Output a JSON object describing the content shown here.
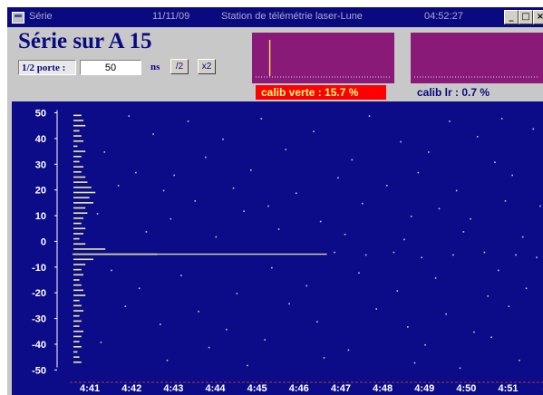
{
  "window": {
    "title": "Série",
    "date": "11/11/09",
    "station": "Station de télémétrie laser-Lune",
    "clock": "04:52:27",
    "minimize_label": "_",
    "maximize_label": "□",
    "close_label": "×"
  },
  "header": {
    "title": "Série sur A 15"
  },
  "controls": {
    "gate_label": "1/2 porte :",
    "gate_value": "50",
    "gate_unit": "ns",
    "half_label": "/2",
    "double_label": "x2"
  },
  "calibration": {
    "green_label": "calib verte : 15.7 %",
    "lr_label": "calib lr : 0.7 %"
  },
  "colors": {
    "plot_bg": "#0c0c88",
    "points": "#c8c8c8",
    "histogram_bar": "#e8e8a8",
    "mini_chart_bg": "#8a1a78",
    "calib_alert": "#ff0000"
  },
  "chart_data": {
    "type": "scatter",
    "title": "",
    "xlabel": "",
    "ylabel": "",
    "ylim": [
      -52,
      53
    ],
    "xlim": [
      "4:40:30",
      "4:51:50"
    ],
    "y_ticks": [
      "50",
      "40",
      "30",
      "20",
      "10",
      "0",
      "-10",
      "-20",
      "-30",
      "-40",
      "-50"
    ],
    "x_ticks": [
      "4:41",
      "4:42",
      "4:43",
      "4:44",
      "4:45",
      "4:46",
      "4:47",
      "4:48",
      "4:49",
      "4:50",
      "4:51",
      "4:5"
    ],
    "return_series": {
      "name": "",
      "from": "4:40:35",
      "to": "4:46:40",
      "y": -5
    },
    "noise_points": [
      [
        "4:41:55",
        49
      ],
      [
        "4:43:20",
        47
      ],
      [
        "4:45:05",
        48
      ],
      [
        "4:47:40",
        49
      ],
      [
        "4:49:35",
        47
      ],
      [
        "4:50:50",
        48
      ],
      [
        "4:42:30",
        42
      ],
      [
        "4:44:10",
        40
      ],
      [
        "4:46:20",
        43
      ],
      [
        "4:48:25",
        39
      ],
      [
        "4:50:15",
        41
      ],
      [
        "4:51:35",
        44
      ],
      [
        "4:41:20",
        35
      ],
      [
        "4:43:45",
        33
      ],
      [
        "4:45:40",
        36
      ],
      [
        "4:47:15",
        32
      ],
      [
        "4:49:05",
        35
      ],
      [
        "4:50:40",
        31
      ],
      [
        "4:42:05",
        27
      ],
      [
        "4:43:00",
        26
      ],
      [
        "4:44:50",
        28
      ],
      [
        "4:46:55",
        25
      ],
      [
        "4:48:50",
        27
      ],
      [
        "4:51:05",
        26
      ],
      [
        "4:41:40",
        22
      ],
      [
        "4:42:45",
        20
      ],
      [
        "4:44:25",
        21
      ],
      [
        "4:45:55",
        19
      ],
      [
        "4:48:05",
        22
      ],
      [
        "4:49:45",
        20
      ],
      [
        "4:43:30",
        16
      ],
      [
        "4:45:15",
        14
      ],
      [
        "4:47:30",
        15
      ],
      [
        "4:49:20",
        13
      ],
      [
        "4:50:55",
        16
      ],
      [
        "4:51:45",
        14
      ],
      [
        "4:41:10",
        11
      ],
      [
        "4:42:55",
        9
      ],
      [
        "4:44:40",
        12
      ],
      [
        "4:46:30",
        8
      ],
      [
        "4:48:40",
        10
      ],
      [
        "4:50:05",
        9
      ],
      [
        "4:42:20",
        4
      ],
      [
        "4:44:00",
        2
      ],
      [
        "4:45:30",
        5
      ],
      [
        "4:47:05",
        3
      ],
      [
        "4:48:30",
        1
      ],
      [
        "4:49:55",
        4
      ],
      [
        "4:51:20",
        2
      ],
      [
        "4:46:50",
        -4
      ],
      [
        "4:47:35",
        -5
      ],
      [
        "4:48:15",
        -4
      ],
      [
        "4:48:55",
        -6
      ],
      [
        "4:49:40",
        -5
      ],
      [
        "4:50:25",
        -4
      ],
      [
        "4:51:10",
        -5
      ],
      [
        "4:51:40",
        -6
      ],
      [
        "4:41:30",
        -11
      ],
      [
        "4:43:10",
        -13
      ],
      [
        "4:45:20",
        -10
      ],
      [
        "4:47:25",
        -12
      ],
      [
        "4:49:15",
        -14
      ],
      [
        "4:50:45",
        -11
      ],
      [
        "4:42:10",
        -18
      ],
      [
        "4:44:30",
        -20
      ],
      [
        "4:46:10",
        -17
      ],
      [
        "4:48:20",
        -19
      ],
      [
        "4:50:30",
        -21
      ],
      [
        "4:51:25",
        -18
      ],
      [
        "4:41:50",
        -25
      ],
      [
        "4:43:35",
        -27
      ],
      [
        "4:45:45",
        -24
      ],
      [
        "4:47:50",
        -26
      ],
      [
        "4:49:30",
        -28
      ],
      [
        "4:51:00",
        -25
      ],
      [
        "4:42:40",
        -32
      ],
      [
        "4:44:15",
        -34
      ],
      [
        "4:46:25",
        -31
      ],
      [
        "4:48:35",
        -33
      ],
      [
        "4:50:10",
        -35
      ],
      [
        "4:51:50",
        -32
      ],
      [
        "4:41:15",
        -39
      ],
      [
        "4:43:50",
        -41
      ],
      [
        "4:45:10",
        -38
      ],
      [
        "4:47:10",
        -42
      ],
      [
        "4:49:00",
        -40
      ],
      [
        "4:50:35",
        -37
      ],
      [
        "4:42:50",
        -46
      ],
      [
        "4:44:45",
        -48
      ],
      [
        "4:46:35",
        -45
      ],
      [
        "4:48:45",
        -47
      ],
      [
        "4:49:50",
        -49
      ],
      [
        "4:51:15",
        -46
      ]
    ],
    "histogram": {
      "bins_y": [
        49,
        47,
        45,
        43,
        41,
        39,
        37,
        35,
        33,
        31,
        29,
        27,
        25,
        23,
        21,
        19,
        17,
        15,
        13,
        11,
        9,
        7,
        5,
        3,
        1,
        -1,
        -3,
        -5,
        -7,
        -9,
        -11,
        -13,
        -15,
        -17,
        -19,
        -21,
        -23,
        -25,
        -27,
        -29,
        -31,
        -33,
        -35,
        -37,
        -39,
        -41,
        -43,
        -45,
        -47
      ],
      "counts": [
        4,
        5,
        6,
        3,
        4,
        5,
        2,
        6,
        4,
        3,
        5,
        4,
        6,
        7,
        9,
        11,
        8,
        10,
        6,
        7,
        5,
        4,
        6,
        5,
        3,
        6,
        16,
        42,
        10,
        6,
        4,
        5,
        3,
        4,
        5,
        6,
        3,
        4,
        5,
        3,
        4,
        3,
        5,
        4,
        3,
        4,
        2,
        3,
        4
      ]
    },
    "mini_green": {
      "bars": [
        0,
        0,
        0,
        0,
        1,
        0,
        0,
        0,
        0,
        0,
        0,
        0,
        0,
        0,
        0,
        0,
        0,
        0,
        0,
        0,
        0,
        0,
        0,
        0,
        0,
        0,
        0,
        0,
        0,
        0,
        0,
        0,
        0,
        0,
        0,
        0,
        0,
        0,
        0,
        0
      ]
    },
    "mini_lr": {
      "bars": [
        0,
        0,
        0,
        0,
        0,
        0,
        0,
        0,
        0,
        0,
        0,
        0,
        0,
        0,
        0,
        0,
        0,
        0,
        0,
        0,
        0,
        0,
        0,
        0,
        0,
        0,
        0,
        0,
        0,
        0,
        0,
        0,
        0,
        0,
        0,
        0,
        0,
        0,
        0,
        0
      ]
    }
  }
}
